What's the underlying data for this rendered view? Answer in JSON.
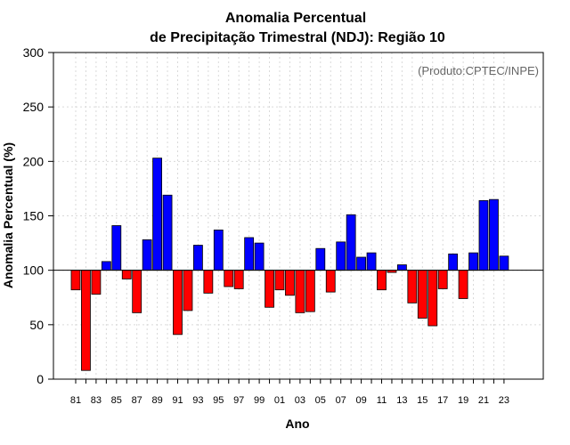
{
  "chart_data": {
    "type": "bar",
    "title": [
      "Anomalia Percentual",
      "de Precipitação Trimestral (NDJ): Região 10"
    ],
    "xlabel": "Ano",
    "ylabel": "Anomalia Percentual (%)",
    "credit": "(Produto:CPTEC/INPE)",
    "ylim": [
      0,
      300
    ],
    "yticks": [
      "0",
      "50",
      "100",
      "150",
      "200",
      "250",
      "300"
    ],
    "baseline": 100,
    "grid": true,
    "colors": {
      "above": "#0000ff",
      "below": "#ff0000"
    },
    "xtick_labels": [
      "81",
      "83",
      "85",
      "87",
      "89",
      "91",
      "93",
      "95",
      "97",
      "99",
      "01",
      "03",
      "05",
      "07",
      "09",
      "11",
      "13",
      "15",
      "17",
      "19",
      "21",
      "23"
    ],
    "categories": [
      "81",
      "82",
      "83",
      "84",
      "85",
      "86",
      "87",
      "88",
      "89",
      "90",
      "91",
      "92",
      "93",
      "94",
      "95",
      "96",
      "97",
      "98",
      "99",
      "00",
      "01",
      "02",
      "03",
      "04",
      "05",
      "06",
      "07",
      "08",
      "09",
      "10",
      "11",
      "12",
      "13",
      "14",
      "15",
      "16",
      "17",
      "18",
      "19",
      "20",
      "21",
      "22",
      "23"
    ],
    "values": [
      82,
      8,
      78,
      108,
      141,
      92,
      61,
      128,
      203,
      169,
      41,
      63,
      123,
      79,
      137,
      85,
      83,
      130,
      125,
      66,
      82,
      77,
      61,
      62,
      120,
      80,
      126,
      151,
      112,
      116,
      82,
      98,
      105,
      70,
      56,
      49,
      83,
      115,
      74,
      116,
      164,
      165,
      113
    ]
  }
}
